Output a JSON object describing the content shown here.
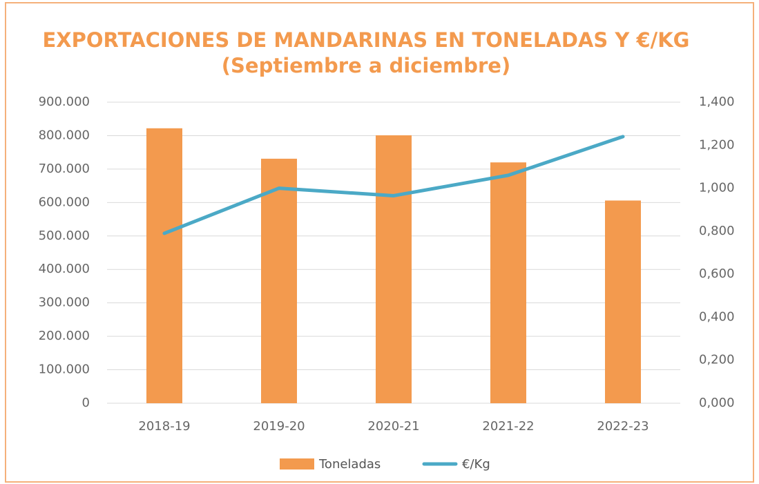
{
  "chart_data": {
    "type": "bar",
    "title": "EXPORTACIONES DE MANDARINAS EN TONELADAS Y €/KG",
    "subtitle": "(Septiembre a diciembre)",
    "categories": [
      "2018-19",
      "2019-20",
      "2020-21",
      "2021-22",
      "2022-23"
    ],
    "series": [
      {
        "name": "Toneladas",
        "type": "bar",
        "color": "#f39a4e",
        "values": [
          822000,
          731000,
          801000,
          720000,
          606000
        ]
      },
      {
        "name": "€/Kg",
        "type": "line",
        "axis": "y2",
        "color": "#4ba9c6",
        "values": [
          0.79,
          1.0,
          0.965,
          1.06,
          1.24
        ]
      }
    ],
    "ylim": [
      0,
      900000
    ],
    "yticks": [
      0,
      {
        "value": 100000,
        "label": "100.000"
      },
      {
        "value": 200000,
        "label": "200.000"
      },
      {
        "value": 300000,
        "label": "300.000"
      },
      {
        "value": 400000,
        "label": "400.000"
      },
      {
        "value": 500000,
        "label": "500.000"
      },
      {
        "value": 600000,
        "label": "600.000"
      },
      {
        "value": 700000,
        "label": "700.000"
      },
      {
        "value": 800000,
        "label": "800.000"
      },
      {
        "value": 900000,
        "label": "900.000"
      }
    ],
    "y2lim": [
      0,
      1.4
    ],
    "y2ticks": [
      {
        "value": 0,
        "label": "0,000"
      },
      {
        "value": 0.2,
        "label": "0,200"
      },
      {
        "value": 0.4,
        "label": "0,400"
      },
      {
        "value": 0.6,
        "label": "0,600"
      },
      {
        "value": 0.8,
        "label": "0,800"
      },
      {
        "value": 1.0,
        "label": "1,000"
      },
      {
        "value": 1.2,
        "label": "1,200"
      },
      {
        "value": 1.4,
        "label": "1,400"
      }
    ],
    "grid": true,
    "legend": "bottom"
  }
}
